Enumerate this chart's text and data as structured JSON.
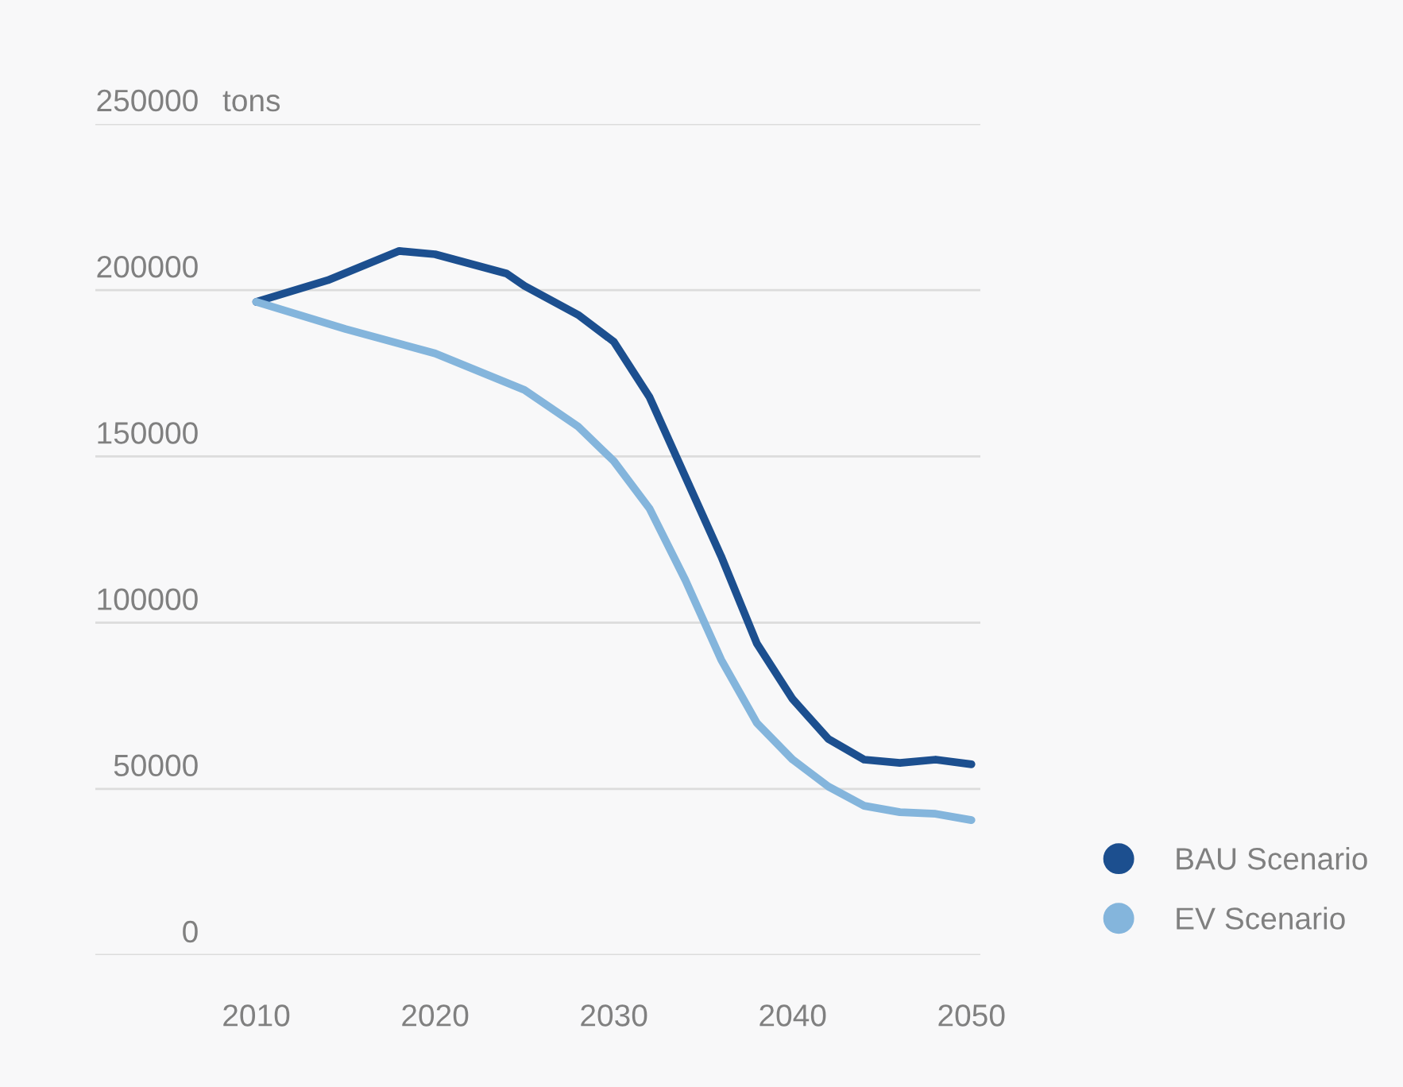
{
  "chart_data": {
    "type": "line",
    "ylabel": "tons",
    "xlim": [
      2001,
      2050.5
    ],
    "xticks": [
      2010,
      2020,
      2030,
      2040,
      2050
    ],
    "ylim": [
      0,
      250000
    ],
    "yticks": [
      0,
      50000,
      100000,
      150000,
      200000,
      250000
    ],
    "grid": "y",
    "legend": "bottom right",
    "marker": "none",
    "line_style": "solid",
    "series": [
      {
        "name": "BAU Scenario",
        "color": "#1c4f8f",
        "x": [
          2010,
          2014,
          2018,
          2020,
          2024,
          2025,
          2028,
          2030,
          2032,
          2034,
          2036,
          2038,
          2040,
          2042,
          2044,
          2046,
          2048,
          2050
        ],
        "values": [
          196500,
          203000,
          211800,
          210800,
          205000,
          201300,
          192600,
          184500,
          167800,
          143900,
          120000,
          93700,
          77000,
          65000,
          58800,
          57800,
          58800,
          57400
        ]
      },
      {
        "name": "EV Scenario",
        "color": "#84b5dc",
        "x": [
          2010,
          2015,
          2020,
          2025,
          2028,
          2030,
          2032,
          2034,
          2036,
          2038,
          2040,
          2042,
          2044,
          2046,
          2048,
          2050
        ],
        "values": [
          196500,
          188300,
          181000,
          170000,
          159000,
          148600,
          134300,
          112800,
          88900,
          69800,
          58800,
          50700,
          44900,
          43000,
          42500,
          40600
        ]
      }
    ]
  }
}
